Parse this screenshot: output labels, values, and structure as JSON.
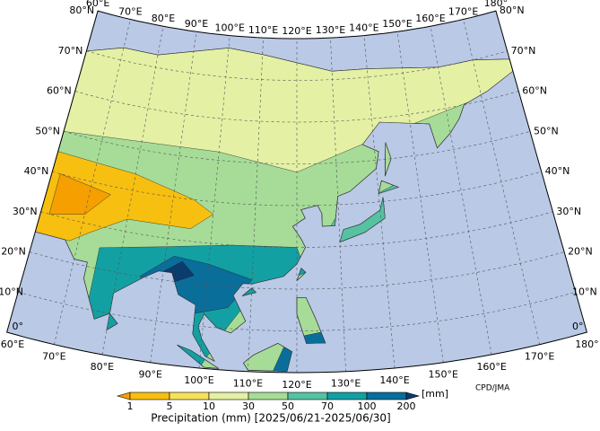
{
  "map": {
    "longitude_labels": [
      "60°E",
      "70°E",
      "80°E",
      "90°E",
      "100°E",
      "110°E",
      "120°E",
      "130°E",
      "140°E",
      "150°E",
      "160°E",
      "170°E",
      "180°"
    ],
    "latitude_labels": [
      "0°",
      "10°N",
      "20°N",
      "30°N",
      "40°N",
      "50°N",
      "60°N",
      "70°N",
      "80°N"
    ]
  },
  "colorbar": {
    "ticks": [
      1,
      5,
      10,
      30,
      50,
      70,
      100,
      200
    ],
    "colors": [
      "#f5a000",
      "#f7bf10",
      "#f6e25a",
      "#e4f0a4",
      "#a6dc98",
      "#55c2a2",
      "#13a0a3",
      "#0a6e9b",
      "#0a3c6e"
    ],
    "unit": "[mm]",
    "label": "Precipitation (mm) [2025/06/21-2025/06/30]"
  },
  "credit": "CPD/JMA"
}
